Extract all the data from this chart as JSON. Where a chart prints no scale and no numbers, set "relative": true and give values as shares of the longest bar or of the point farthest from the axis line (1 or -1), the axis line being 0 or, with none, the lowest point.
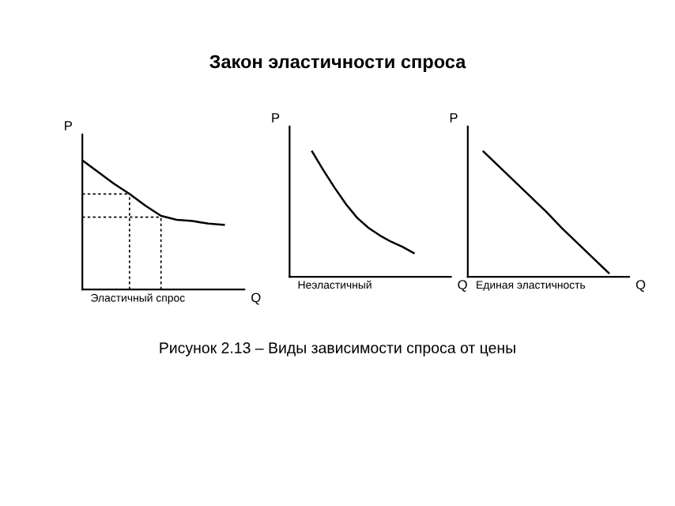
{
  "chart_data": [
    {
      "type": "line",
      "title": "Закон эластичности спроса",
      "relative": true,
      "xlabel": "Q",
      "ylabel": "P",
      "annotations": [
        "Эластичный спрос"
      ],
      "categories": [
        null,
        null,
        null,
        null,
        null,
        null,
        null,
        null,
        null,
        null,
        null
      ],
      "series": [
        {
          "color": "#000000",
          "values": [
            1,
            0.91,
            0.82,
            0.74,
            0.65,
            0.57,
            0.54,
            0.53,
            0.51,
            0.5,
            null
          ]
        },
        {
          "color": "#000000",
          "line_style": "dashed",
          "values": [
            0.74,
            0.74,
            0.74,
            0.74,
            null,
            null,
            null,
            null,
            null,
            null,
            null
          ]
        },
        {
          "color": "#000000",
          "line_style": "dashed",
          "values": [
            0.56,
            0.56,
            0.56,
            0.56,
            0.56,
            0.56,
            null,
            null,
            null,
            null,
            null
          ]
        }
      ]
    },
    {
      "type": "line",
      "relative": true,
      "xlabel": "Q",
      "ylabel": "P",
      "annotations": [
        "Неэластичный",
        "Рисунок 2.13 – Виды зависимости спроса от цены"
      ],
      "categories": [
        null,
        null,
        null,
        null,
        null,
        null,
        null,
        null,
        null,
        null,
        null,
        null,
        null,
        null,
        null
      ],
      "series": [
        {
          "color": "#000000",
          "values": [
            null,
            null,
            1,
            0.85,
            0.71,
            0.58,
            0.47,
            0.39,
            0.33,
            0.28,
            0.24,
            0.19,
            null,
            null,
            null
          ]
        }
      ]
    },
    {
      "type": "line",
      "relative": true,
      "xlabel": "Q",
      "ylabel": "P",
      "annotations": [
        "Единая эластичность"
      ],
      "categories": [
        null,
        null,
        null,
        null,
        null,
        null,
        null,
        null,
        null,
        null,
        null
      ],
      "series": [
        {
          "color": "#000000",
          "values": [
            null,
            1,
            0.88,
            0.76,
            0.64,
            0.52,
            0.39,
            0.27,
            0.15,
            0.03,
            null
          ]
        }
      ]
    }
  ]
}
